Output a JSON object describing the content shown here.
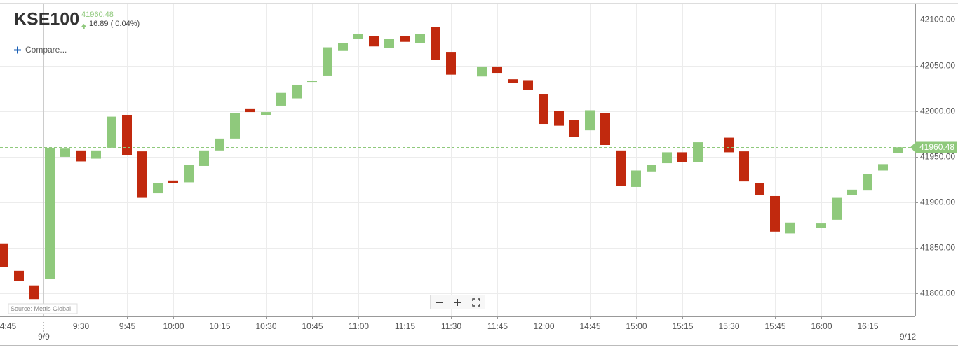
{
  "chart_data": {
    "type": "candlestick",
    "title": "KSE100",
    "last_price": 41960.48,
    "change_text": "16.89 ( 0.04%)",
    "compare_label": "Compare...",
    "source": "Source: Mettis Global",
    "up_color": "#8fc97c",
    "down_color": "#c1290e",
    "price_line_color": "#8fc97c",
    "grid": true,
    "open": [
      41855,
      41825,
      41809,
      41816,
      41950,
      41957,
      41948,
      41960,
      41996,
      41956,
      41910,
      41924,
      41922,
      41940,
      41957,
      41970,
      42003,
      41996,
      42006,
      42014,
      42032,
      42039,
      42066,
      42079,
      42082,
      42069,
      42082,
      42075,
      42092,
      42065,
      null,
      42038,
      42049,
      42035,
      42034,
      42019,
      42000,
      41990,
      41979,
      41998,
      41957,
      41917,
      41934,
      41943,
      41955,
      41944,
      null,
      41971,
      41956,
      41921,
      41907,
      41866,
      null,
      41872,
      41881,
      41908,
      41913,
      41935,
      41954
    ],
    "close": [
      41829,
      41814,
      41794,
      41960,
      41959,
      41945,
      41957,
      41994,
      41952,
      41905,
      41921,
      41921,
      41941,
      41957,
      41970,
      41998,
      41999,
      41999,
      42020,
      42029,
      42033,
      42070,
      42075,
      42085,
      42071,
      42079,
      42076,
      42085,
      42056,
      42040,
      null,
      42049,
      42042,
      42031,
      42023,
      41986,
      41984,
      41972,
      42001,
      41963,
      41918,
      41935,
      41941,
      41955,
      41944,
      41966,
      null,
      41955,
      41923,
      41908,
      41868,
      41878,
      null,
      41877,
      41905,
      41914,
      41931,
      41942,
      41960.48
    ],
    "ylim": [
      41775,
      42118
    ],
    "yticks": [
      {
        "value": 41800,
        "label": "41800.00"
      },
      {
        "value": 41850,
        "label": "41850.00"
      },
      {
        "value": 41900,
        "label": "41900.00"
      },
      {
        "value": 41950,
        "label": "41950.00"
      },
      {
        "value": 42000,
        "label": "42000.00"
      },
      {
        "value": 42050,
        "label": "42050.00"
      },
      {
        "value": 42100,
        "label": "42100.00"
      }
    ],
    "xticks": [
      {
        "value": 0.25,
        "label": "4:45"
      },
      {
        "value": 5,
        "label": "9:30"
      },
      {
        "value": 8,
        "label": "9:45"
      },
      {
        "value": 11,
        "label": "10:00"
      },
      {
        "value": 14,
        "label": "10:15"
      },
      {
        "value": 17,
        "label": "10:30"
      },
      {
        "value": 20,
        "label": "10:45"
      },
      {
        "value": 23,
        "label": "11:00"
      },
      {
        "value": 26,
        "label": "11:15"
      },
      {
        "value": 29,
        "label": "11:30"
      },
      {
        "value": 32,
        "label": "11:45"
      },
      {
        "value": 35,
        "label": "12:00"
      },
      {
        "value": 38,
        "label": "14:45"
      },
      {
        "value": 41,
        "label": "15:00"
      },
      {
        "value": 44,
        "label": "15:15"
      },
      {
        "value": 47,
        "label": "15:30"
      },
      {
        "value": 50,
        "label": "15:45"
      },
      {
        "value": 53,
        "label": "16:00"
      },
      {
        "value": 56,
        "label": "16:15"
      }
    ],
    "date_ticks": [
      {
        "value": 2.6,
        "label": "9/9"
      },
      {
        "value": 58.6,
        "label": "9/12"
      }
    ]
  }
}
